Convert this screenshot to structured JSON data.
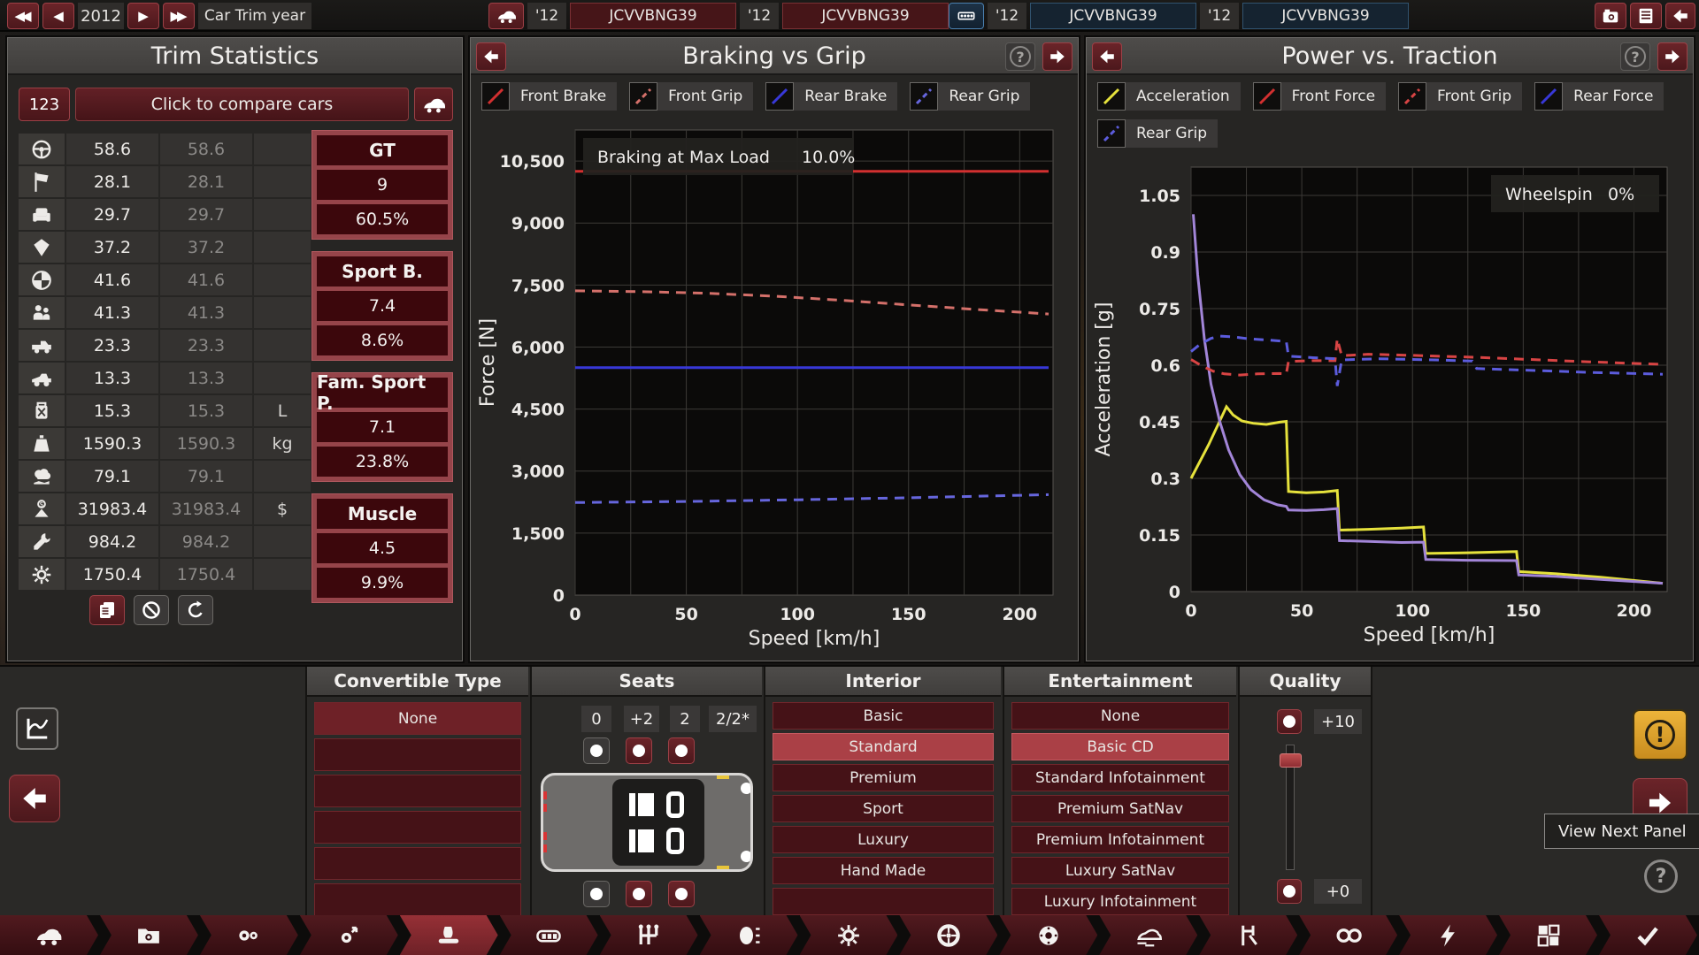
{
  "top_bar": {
    "year": "2012",
    "year_label": "Car Trim year",
    "car_group": {
      "icon": "car-icon",
      "tabs": [
        {
          "year": "'12",
          "name": "JCVVBNG39"
        },
        {
          "year": "'12",
          "name": "JCVVBNG39"
        }
      ]
    },
    "engine_group": {
      "icon": "engine-icon",
      "tabs": [
        {
          "year": "'12",
          "name": "JCVVBNG39"
        },
        {
          "year": "'12",
          "name": "JCVVBNG39"
        }
      ]
    }
  },
  "trim_statistics": {
    "title": "Trim Statistics",
    "compare_button": "123",
    "compare_bar": "Click to compare cars",
    "rows": [
      {
        "icon": "steering-wheel-icon",
        "value": "58.6",
        "compare": "58.6",
        "unit": ""
      },
      {
        "icon": "checkered-flag-icon",
        "value": "28.1",
        "compare": "28.1",
        "unit": ""
      },
      {
        "icon": "armchair-icon",
        "value": "29.7",
        "compare": "29.7",
        "unit": ""
      },
      {
        "icon": "diamond-icon",
        "value": "37.2",
        "compare": "37.2",
        "unit": ""
      },
      {
        "icon": "safety-icon",
        "value": "41.6",
        "compare": "41.6",
        "unit": ""
      },
      {
        "icon": "family-icon",
        "value": "41.3",
        "compare": "41.3",
        "unit": ""
      },
      {
        "icon": "pickup-truck-icon",
        "value": "23.3",
        "compare": "23.3",
        "unit": ""
      },
      {
        "icon": "offroad-car-icon",
        "value": "13.3",
        "compare": "13.3",
        "unit": ""
      },
      {
        "icon": "fuel-can-icon",
        "value": "15.3",
        "compare": "15.3",
        "unit": "L"
      },
      {
        "icon": "weight-icon",
        "value": "1590.3",
        "compare": "1590.3",
        "unit": "kg"
      },
      {
        "icon": "environment-icon",
        "value": "79.1",
        "compare": "79.1",
        "unit": ""
      },
      {
        "icon": "price-icon",
        "value": "31983.4",
        "compare": "31983.4",
        "unit": "$"
      },
      {
        "icon": "service-costs-icon",
        "value": "984.2",
        "compare": "984.2",
        "unit": ""
      },
      {
        "icon": "production-units-icon",
        "value": "1750.4",
        "compare": "1750.4",
        "unit": ""
      }
    ],
    "demographics": [
      {
        "name": "GT",
        "score": "9",
        "share": "60.5%"
      },
      {
        "name": "Sport B.",
        "score": "7.4",
        "share": "8.6%"
      },
      {
        "name": "Fam. Sport P.",
        "score": "7.1",
        "share": "23.8%"
      },
      {
        "name": "Muscle",
        "score": "4.5",
        "share": "9.9%"
      }
    ]
  },
  "chart_data": [
    {
      "type": "line",
      "title": "Braking vs Grip",
      "xlabel": "Speed [km/h]",
      "ylabel": "Force [N]",
      "xlim": [
        0,
        215
      ],
      "ylim": [
        0,
        11250
      ],
      "xticks": [
        0,
        50,
        100,
        150,
        200
      ],
      "x_minor_step": 25,
      "yticks": [
        0,
        1500,
        3000,
        4500,
        6000,
        7500,
        9000,
        10500
      ],
      "ytick_labels": [
        "0",
        "1,500",
        "3,000",
        "4,500",
        "6,000",
        "7,500",
        "9,000",
        "10,500"
      ],
      "grid": true,
      "info": {
        "label": "Braking at Max Load",
        "value": "10.0%",
        "position": "top-left"
      },
      "legend": [
        {
          "label": "Front Brake",
          "color": "#d23030",
          "dashed": false
        },
        {
          "label": "Front Grip",
          "color": "#d4706a",
          "dashed": true
        },
        {
          "label": "Rear Brake",
          "color": "#3838d8",
          "dashed": false
        },
        {
          "label": "Rear Grip",
          "color": "#6666dd",
          "dashed": true
        }
      ],
      "series": [
        {
          "name": "Front Brake",
          "color": "#d23030",
          "dashed": false,
          "points": [
            [
              0,
              10250
            ],
            [
              213,
              10250
            ]
          ]
        },
        {
          "name": "Front Grip",
          "color": "#d4706a",
          "dashed": true,
          "points": [
            [
              0,
              7360
            ],
            [
              30,
              7340
            ],
            [
              60,
              7300
            ],
            [
              90,
              7230
            ],
            [
              120,
              7130
            ],
            [
              150,
              7020
            ],
            [
              180,
              6910
            ],
            [
              213,
              6800
            ]
          ]
        },
        {
          "name": "Rear Brake",
          "color": "#3838d8",
          "dashed": false,
          "points": [
            [
              0,
              5500
            ],
            [
              213,
              5500
            ]
          ]
        },
        {
          "name": "Rear Grip",
          "color": "#6666dd",
          "dashed": true,
          "points": [
            [
              0,
              2240
            ],
            [
              50,
              2265
            ],
            [
              100,
              2305
            ],
            [
              150,
              2355
            ],
            [
              213,
              2430
            ]
          ]
        }
      ]
    },
    {
      "type": "line",
      "title": "Power vs. Traction",
      "xlabel": "Speed [km/h]",
      "ylabel": "Acceleration [g]",
      "xlim": [
        0,
        215
      ],
      "ylim": [
        0,
        1.125
      ],
      "xticks": [
        0,
        50,
        100,
        150,
        200
      ],
      "x_minor_step": 25,
      "yticks": [
        0,
        0.15,
        0.3,
        0.45,
        0.6,
        0.75,
        0.9,
        1.05
      ],
      "ytick_labels": [
        "0",
        "0.15",
        "0.3",
        "0.45",
        "0.6",
        "0.75",
        "0.9",
        "1.05"
      ],
      "grid": true,
      "info": {
        "label": "Wheelspin",
        "value": "0%",
        "position": "top-right"
      },
      "legend": [
        {
          "label": "Acceleration",
          "color": "#e6e23c",
          "dashed": false
        },
        {
          "label": "Front Force",
          "color": "#d23030",
          "dashed": false
        },
        {
          "label": "Front Grip",
          "color": "#d84444",
          "dashed": true
        },
        {
          "label": "Rear Force",
          "color": "#3838d8",
          "dashed": false
        },
        {
          "label": "Rear Grip",
          "color": "#5c5cdd",
          "dashed": true
        }
      ],
      "series": [
        {
          "name": "Acceleration",
          "color": "#e6e23c",
          "dashed": false,
          "points": [
            [
              0,
              0.3
            ],
            [
              8,
              0.39
            ],
            [
              16,
              0.49
            ],
            [
              19,
              0.468
            ],
            [
              23,
              0.452
            ],
            [
              28,
              0.446
            ],
            [
              34,
              0.443
            ],
            [
              40,
              0.449
            ],
            [
              43,
              0.451
            ],
            [
              44,
              0.265
            ],
            [
              52,
              0.262
            ],
            [
              60,
              0.264
            ],
            [
              66,
              0.268
            ],
            [
              67,
              0.163
            ],
            [
              80,
              0.165
            ],
            [
              95,
              0.168
            ],
            [
              105,
              0.171
            ],
            [
              106,
              0.101
            ],
            [
              125,
              0.103
            ],
            [
              147,
              0.106
            ],
            [
              148,
              0.053
            ],
            [
              165,
              0.047
            ],
            [
              185,
              0.038
            ],
            [
              213,
              0.022
            ]
          ]
        },
        {
          "name": "Rear Force",
          "color": "#a285d8",
          "dashed": false,
          "points": [
            [
              1,
              1.0
            ],
            [
              3,
              0.84
            ],
            [
              6,
              0.67
            ],
            [
              9,
              0.55
            ],
            [
              13,
              0.45
            ],
            [
              17,
              0.375
            ],
            [
              22,
              0.31
            ],
            [
              27,
              0.27
            ],
            [
              33,
              0.243
            ],
            [
              39,
              0.23
            ],
            [
              43,
              0.226
            ],
            [
              44,
              0.216
            ],
            [
              52,
              0.215
            ],
            [
              60,
              0.217
            ],
            [
              66,
              0.22
            ],
            [
              67,
              0.135
            ],
            [
              80,
              0.133
            ],
            [
              95,
              0.13
            ],
            [
              105,
              0.131
            ],
            [
              106,
              0.085
            ],
            [
              125,
              0.083
            ],
            [
              147,
              0.082
            ],
            [
              148,
              0.044
            ],
            [
              165,
              0.04
            ],
            [
              185,
              0.032
            ],
            [
              213,
              0.022
            ]
          ]
        },
        {
          "name": "Front Grip",
          "color": "#d84444",
          "dashed": true,
          "points": [
            [
              0,
              0.615
            ],
            [
              5,
              0.598
            ],
            [
              10,
              0.584
            ],
            [
              15,
              0.577
            ],
            [
              22,
              0.574
            ],
            [
              30,
              0.577
            ],
            [
              40,
              0.578
            ],
            [
              43,
              0.577
            ],
            [
              44,
              0.61
            ],
            [
              55,
              0.612
            ],
            [
              65,
              0.612
            ],
            [
              66,
              0.67
            ],
            [
              68,
              0.625
            ],
            [
              80,
              0.629
            ],
            [
              100,
              0.626
            ],
            [
              128,
              0.621
            ],
            [
              150,
              0.616
            ],
            [
              180,
              0.609
            ],
            [
              213,
              0.602
            ]
          ]
        },
        {
          "name": "Rear Grip",
          "color": "#5c5cdd",
          "dashed": true,
          "points": [
            [
              0,
              0.636
            ],
            [
              4,
              0.655
            ],
            [
              9,
              0.671
            ],
            [
              13,
              0.677
            ],
            [
              19,
              0.675
            ],
            [
              26,
              0.67
            ],
            [
              34,
              0.667
            ],
            [
              43,
              0.663
            ],
            [
              44,
              0.624
            ],
            [
              55,
              0.62
            ],
            [
              65,
              0.617
            ],
            [
              66,
              0.545
            ],
            [
              68,
              0.614
            ],
            [
              85,
              0.617
            ],
            [
              110,
              0.614
            ],
            [
              127,
              0.611
            ],
            [
              129,
              0.591
            ],
            [
              150,
              0.587
            ],
            [
              180,
              0.581
            ],
            [
              213,
              0.576
            ]
          ]
        }
      ]
    }
  ],
  "bottom": {
    "convertible": {
      "title": "Convertible Type",
      "options": [
        {
          "label": "None",
          "state": "first"
        },
        {
          "label": ""
        },
        {
          "label": ""
        },
        {
          "label": ""
        },
        {
          "label": ""
        },
        {
          "label": ""
        }
      ]
    },
    "seats": {
      "title": "Seats",
      "counts": [
        "0",
        "+2",
        "2"
      ],
      "ratio": "2/2*",
      "plus_disabled": [
        true,
        false,
        false
      ],
      "minus_disabled": [
        true,
        false,
        false
      ]
    },
    "interior": {
      "title": "Interior",
      "options": [
        {
          "label": "Basic"
        },
        {
          "label": "Standard",
          "state": "selected"
        },
        {
          "label": "Premium"
        },
        {
          "label": "Sport"
        },
        {
          "label": "Luxury"
        },
        {
          "label": "Hand Made"
        },
        {
          "label": ""
        }
      ]
    },
    "entertainment": {
      "title": "Entertainment",
      "options": [
        {
          "label": "None"
        },
        {
          "label": "Basic CD",
          "state": "selected"
        },
        {
          "label": "Standard Infotainment"
        },
        {
          "label": "Premium SatNav"
        },
        {
          "label": "Premium Infotainment"
        },
        {
          "label": "Luxury SatNav"
        },
        {
          "label": "Luxury Infotainment"
        }
      ]
    },
    "quality": {
      "title": "Quality",
      "top_value": "+10",
      "bottom_value": "+0"
    },
    "tooltip": "View Next Panel"
  },
  "toolbar": {
    "tabs": [
      {
        "icon": "car-body-icon",
        "active": false
      },
      {
        "icon": "engine-folder-icon",
        "active": false
      },
      {
        "icon": "engine-family-icon",
        "active": false
      },
      {
        "icon": "engine-tuning-icon",
        "active": false
      },
      {
        "icon": "trim-interior-icon",
        "active": true
      },
      {
        "icon": "seats-layout-icon",
        "active": false
      },
      {
        "icon": "gearbox-icon",
        "active": false
      },
      {
        "icon": "fixtures-icon",
        "active": false
      },
      {
        "icon": "cog-icon",
        "active": false
      },
      {
        "icon": "wheel-icon",
        "active": false
      },
      {
        "icon": "brake-disc-icon",
        "active": false
      },
      {
        "icon": "aero-icon",
        "active": false
      },
      {
        "icon": "suspension-icon",
        "active": false
      },
      {
        "icon": "wheels-pair-icon",
        "active": false
      },
      {
        "icon": "bolt-icon",
        "active": false
      },
      {
        "icon": "quality-grid-icon",
        "active": false
      },
      {
        "icon": "check-icon",
        "active": false
      }
    ]
  },
  "colors": {
    "accent_maroon": "#5e2126",
    "selected_red": "#aa4046",
    "engine_blue": "#16283a",
    "warning_yellow": "#dfa32b",
    "glow_orange": "#e9a62e"
  }
}
